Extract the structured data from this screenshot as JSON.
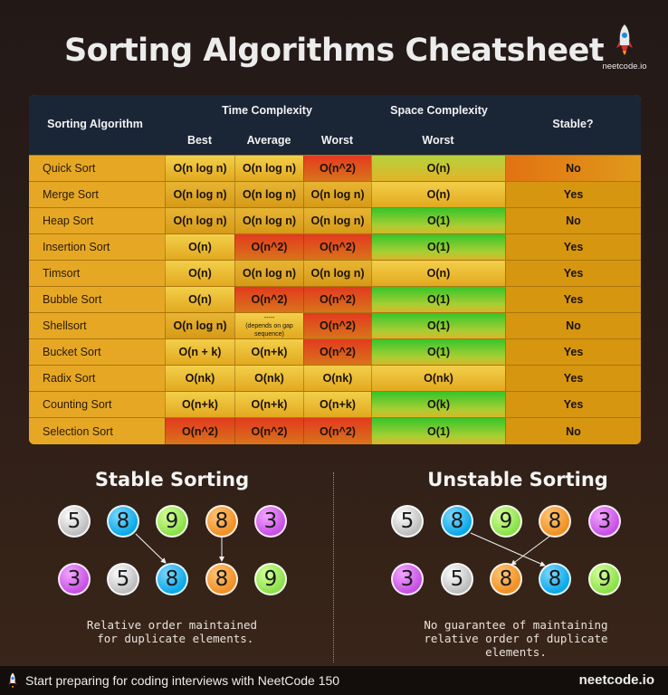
{
  "title": "Sorting Algorithms Cheatsheet",
  "logo": {
    "text": "neetcode.io",
    "icon": "rocket-icon"
  },
  "table": {
    "headers": {
      "algorithm": "Sorting Algorithm",
      "time": "Time Complexity",
      "space": "Space Complexity",
      "stable": "Stable?",
      "best": "Best",
      "average": "Average",
      "worst": "Worst",
      "space_worst": "Worst"
    },
    "rows": [
      {
        "name": "Quick Sort",
        "best": "O(n log n)",
        "average": "O(n log n)",
        "worst": "O(n^2)",
        "space": "O(n)",
        "stable": "No"
      },
      {
        "name": "Merge Sort",
        "best": "O(n log n)",
        "average": "O(n log n)",
        "worst": "O(n log n)",
        "space": "O(n)",
        "stable": "Yes"
      },
      {
        "name": "Heap Sort",
        "best": "O(n log n)",
        "average": "O(n log n)",
        "worst": "O(n log n)",
        "space": "O(1)",
        "stable": "No"
      },
      {
        "name": "Insertion Sort",
        "best": "O(n)",
        "average": "O(n^2)",
        "worst": "O(n^2)",
        "space": "O(1)",
        "stable": "Yes"
      },
      {
        "name": "Timsort",
        "best": "O(n)",
        "average": "O(n log n)",
        "worst": "O(n log n)",
        "space": "O(n)",
        "stable": "Yes"
      },
      {
        "name": "Bubble Sort",
        "best": "O(n)",
        "average": "O(n^2)",
        "worst": "O(n^2)",
        "space": "O(1)",
        "stable": "Yes"
      },
      {
        "name": "Shellsort",
        "best": "O(n log n)",
        "average": "-----\n(depends on gap sequence)",
        "worst": "O(n^2)",
        "space": "O(1)",
        "stable": "No"
      },
      {
        "name": "Bucket Sort",
        "best": "O(n + k)",
        "average": "O(n+k)",
        "worst": "O(n^2)",
        "space": "O(1)",
        "stable": "Yes"
      },
      {
        "name": "Radix Sort",
        "best": "O(nk)",
        "average": "O(nk)",
        "worst": "O(nk)",
        "space": "O(nk)",
        "stable": "Yes"
      },
      {
        "name": "Counting Sort",
        "best": "O(n+k)",
        "average": "O(n+k)",
        "worst": "O(n+k)",
        "space": "O(k)",
        "stable": "Yes"
      },
      {
        "name": "Selection Sort",
        "best": "O(n^2)",
        "average": "O(n^2)",
        "worst": "O(n^2)",
        "space": "O(1)",
        "stable": "No"
      }
    ]
  },
  "stable_section": {
    "title": "Stable Sorting",
    "top": [
      "5",
      "8",
      "9",
      "8",
      "3"
    ],
    "bottom": [
      "3",
      "5",
      "8",
      "8",
      "9"
    ],
    "caption": "Relative order maintained\n for duplicate elements."
  },
  "unstable_section": {
    "title": "Unstable Sorting",
    "top": [
      "5",
      "8",
      "9",
      "8",
      "3"
    ],
    "bottom": [
      "3",
      "5",
      "8",
      "8",
      "9"
    ],
    "caption": "No guarantee of maintaining\nrelative order of duplicate\nelements."
  },
  "colors": {
    "gray": "#bdbdbd",
    "blue": "#0aa8e8",
    "green": "#8be04a",
    "orange": "#f09025",
    "purple": "#c750e3"
  },
  "footer": {
    "text": "Start preparing for coding interviews with NeetCode 150",
    "brand": "neetcode.io",
    "icon": "rocket-icon"
  }
}
